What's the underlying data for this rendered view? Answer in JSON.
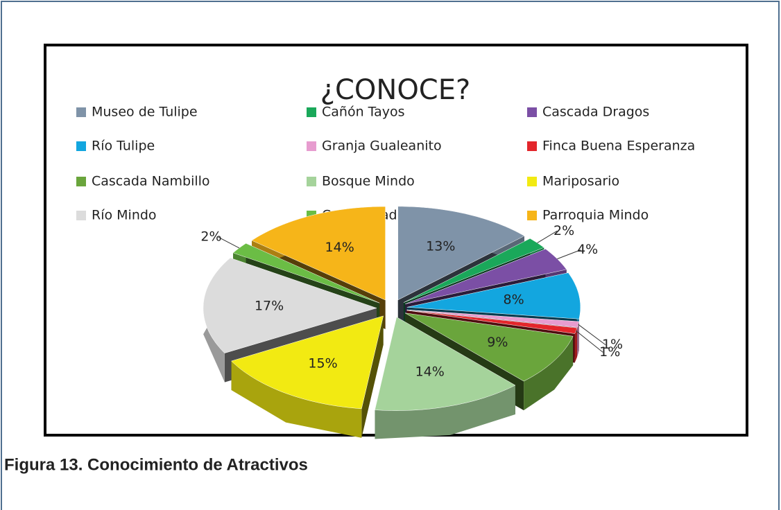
{
  "chart_data": {
    "type": "pie",
    "title": "¿CONOCE?",
    "categories": [
      "Museo de Tulipe",
      "Cañón Tayos",
      "Cascada Dragos",
      "Río Tulipe",
      "Granja Gualeanito",
      "Finca Buena Esperanza",
      "Cascada Nambillo",
      "Bosque Mindo",
      "Mariposario",
      "Río Mindo",
      "Comunidad Tolas",
      "Parroquia Mindo"
    ],
    "values": [
      13,
      2,
      4,
      8,
      1,
      1,
      9,
      14,
      15,
      17,
      2,
      14
    ],
    "value_labels": [
      "13%",
      "2%",
      "4%",
      "8%",
      "1%",
      "1%",
      "9%",
      "14%",
      "15%",
      "17%",
      "2%",
      "14%"
    ],
    "colors": [
      "#7f93a8",
      "#1aa85a",
      "#7b4fa5",
      "#13a6df",
      "#e79ccf",
      "#e3262b",
      "#6aa53c",
      "#a5d39b",
      "#f2ea12",
      "#dcdcdc",
      "#6bbd45",
      "#f6b519"
    ],
    "legend": "top"
  },
  "caption": "Figura 13.  Conocimiento de Atractivos"
}
